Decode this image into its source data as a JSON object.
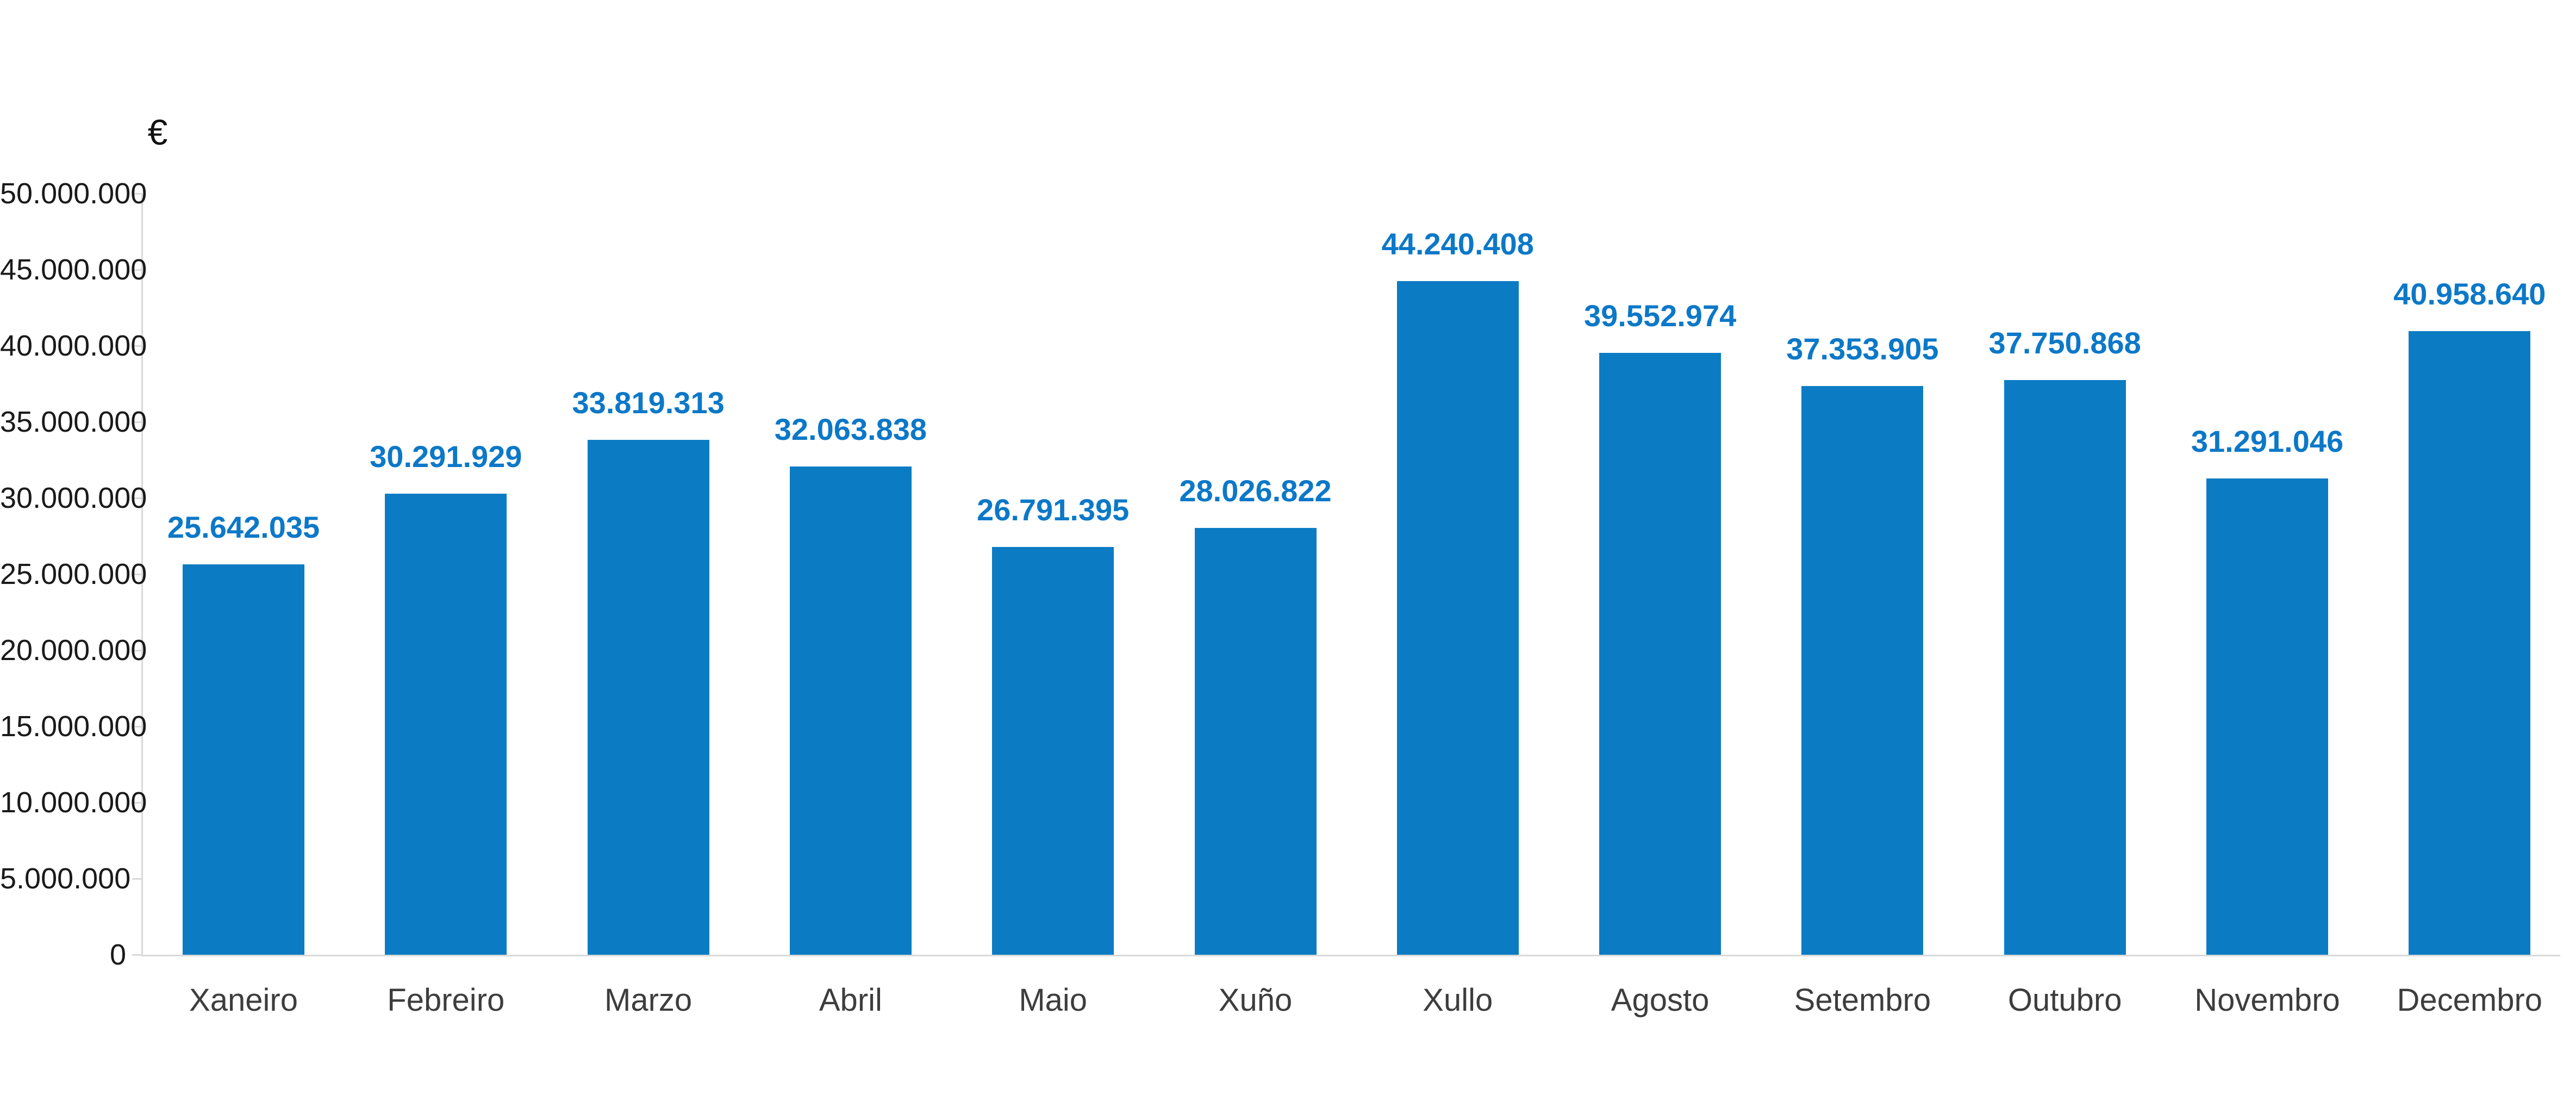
{
  "chart_data": {
    "type": "bar",
    "title": "",
    "xlabel": "",
    "ylabel": "€",
    "categories": [
      "Xaneiro",
      "Febreiro",
      "Marzo",
      "Abril",
      "Maio",
      "Xuño",
      "Xullo",
      "Agosto",
      "Setembro",
      "Outubro",
      "Novembro",
      "Decembro"
    ],
    "values": [
      25642035,
      30291929,
      33819313,
      32063838,
      26791395,
      28026822,
      44240408,
      39552974,
      37353905,
      37750868,
      31291046,
      40958640
    ],
    "value_labels": [
      "25.642.035",
      "30.291.929",
      "33.819.313",
      "32.063.838",
      "26.791.395",
      "28.026.822",
      "44.240.408",
      "39.552.974",
      "37.353.905",
      "37.750.868",
      "31.291.046",
      "40.958.640"
    ],
    "y_ticks": [
      0,
      5000000,
      10000000,
      15000000,
      20000000,
      25000000,
      30000000,
      35000000,
      40000000,
      45000000,
      50000000
    ],
    "y_tick_labels": [
      "0",
      "5.000.000",
      "10.000.000",
      "15.000.000",
      "20.000.000",
      "25.000.000",
      "30.000.000",
      "35.000.000",
      "40.000.000",
      "45.000.000",
      "50.000.000"
    ],
    "ylim": [
      0,
      50000000
    ],
    "grid": false,
    "legend": "none",
    "bar_color": "#0b7cc4",
    "value_label_color": "#0c78c8",
    "axis_color": "#d9d9d9",
    "tick_text_color": "#1a1a1a",
    "category_text_color": "#3d3d3d"
  }
}
